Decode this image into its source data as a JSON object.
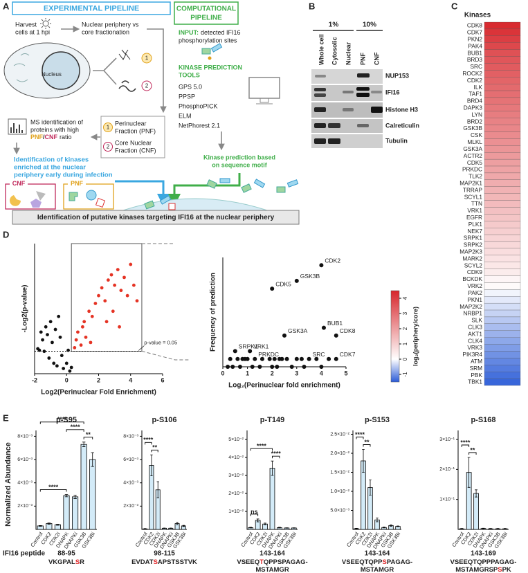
{
  "figure": {
    "panel_labels": [
      "A",
      "B",
      "C",
      "D",
      "E"
    ],
    "A": {
      "experimental_title": "EXPERIMENTAL PIPELINE",
      "computational_title": [
        "COMPUTATIONAL",
        "PIPELINE"
      ],
      "harvest": [
        "Harvest",
        "cells at 1 hpi"
      ],
      "fractionation": [
        "Nuclear periphery vs",
        "core fractionation"
      ],
      "nucleus": "Nucleus",
      "fraction_numbers": [
        "1",
        "2"
      ],
      "pnf": [
        "Perinuclear",
        "Fraction (PNF)"
      ],
      "cnf": [
        "Core Nuclear",
        "Fraction (CNF)"
      ],
      "ms": [
        "MS identification of",
        "proteins with high"
      ],
      "ms_ratio": [
        "PNF",
        "/",
        "CNF",
        "ratio"
      ],
      "kinases_enriched": [
        "Identification of kinases",
        "enriched at  the nuclear",
        "periphery early during infection"
      ],
      "box_cnf": "CNF",
      "box_pnf": "PNF",
      "input": [
        "INPUT:",
        "detected IFI16"
      ],
      "input2": "phosphorylation sites",
      "tools_title": [
        "KINASE PREDICTION",
        "TOOLS"
      ],
      "tools": [
        "GPS 5.0",
        "PPSP",
        "PhosphoPICK",
        "ELM",
        "NetPhorest 2.1"
      ],
      "motif": [
        "Kinase prediction based",
        "on sequence motif"
      ],
      "conclusion": "Identification of putative kinases targeting IFI16 at the nuclear periphery"
    },
    "B": {
      "groups": [
        "1%",
        "10%"
      ],
      "lanes": [
        "Whole cell",
        "Cytosolic",
        "Nuclear",
        "PNF",
        "CNF"
      ],
      "proteins": [
        "NUP153",
        "IFI16",
        "Histone H3",
        "Calreticulin",
        "Tubulin"
      ]
    },
    "E": {
      "ylabel": "Normalized Abundance",
      "peptide_label": "IFI16 peptide"
    }
  },
  "chart_data": [
    {
      "type": "heatmap",
      "title": "Kinases",
      "categories": [
        "CDK8",
        "CDK7",
        "PKN2",
        "PAK4",
        "BUB1",
        "BRD3",
        "SRC",
        "ROCK2",
        "CDK2",
        "ILK",
        "TAF1",
        "BRD4",
        "DAPK3",
        "LYN",
        "BRD2",
        "GSK3B",
        "CSK",
        "MLKL",
        "GSK3A",
        "ACTR2",
        "CDK5",
        "PRKDC",
        "TLK2",
        "MAP2K1",
        "TRRAP",
        "SCYL1",
        "TTN",
        "VRK1",
        "EGFR",
        "PLK1",
        "NEK7",
        "SRPK1",
        "SRPK2",
        "MAP2K3",
        "MARK2",
        "SCYL2",
        "CDK9",
        "BCKDK",
        "VRK2",
        "PAK2",
        "PKN1",
        "MAP2K2",
        "NRBP1",
        "SLK",
        "CLK3",
        "AKT1",
        "CLK4",
        "VRK3",
        "PIK3R4",
        "ATM",
        "SRM",
        "PBK",
        "TBK1"
      ],
      "values": [
        4.4,
        4.2,
        4.0,
        3.8,
        3.6,
        3.5,
        3.4,
        3.3,
        3.2,
        3.1,
        3.0,
        2.9,
        2.8,
        2.7,
        2.6,
        2.5,
        2.4,
        2.3,
        2.2,
        2.1,
        2.0,
        1.9,
        1.8,
        1.7,
        1.6,
        1.5,
        1.4,
        1.3,
        1.2,
        1.1,
        1.0,
        0.9,
        0.8,
        0.7,
        0.6,
        0.5,
        0.4,
        0.2,
        0.1,
        -0.1,
        -0.2,
        -0.3,
        -0.4,
        -0.5,
        -0.6,
        -0.7,
        -0.8,
        -0.9,
        -1.0,
        -1.1,
        -1.2,
        -1.3,
        -1.4
      ],
      "colorbar_title": "log₂(periphery/core)",
      "clim": [
        -1.5,
        4.5
      ],
      "cticks": [
        -1,
        0,
        1,
        2,
        3,
        4
      ],
      "colors": [
        "#2a5bd7",
        "#ffffff",
        "#d7262b"
      ]
    },
    {
      "type": "scatter",
      "xlabel": "Log2(Perinuclear Fold Enrichment)",
      "ylabel": "-Log2(p-value)",
      "xlim": [
        -2,
        6
      ],
      "xticks": [
        -2,
        0,
        2,
        4,
        6
      ],
      "ylim": [
        0,
        25
      ],
      "threshold": {
        "value": 4.32,
        "label": "p-value = 0.05"
      },
      "series": [
        {
          "color": "#111111",
          "x": [
            -1.6,
            -1.5,
            -1.3,
            -1.2,
            -1.0,
            -0.9,
            -0.7,
            -0.5,
            -0.4,
            -1.7,
            -1.4,
            -1.1,
            -0.8,
            -0.6,
            -0.3,
            -0.2,
            0.0,
            0.1,
            0.2,
            0.3,
            -1.8
          ],
          "y": [
            8,
            6.5,
            9,
            7.5,
            10,
            6,
            8.5,
            11,
            7,
            4.5,
            4.3,
            3,
            2,
            1.5,
            3.5,
            1,
            2,
            4.5,
            0.5,
            1.2,
            4.8
          ]
        },
        {
          "color": "#e53324",
          "x": [
            0.5,
            0.6,
            0.7,
            0.9,
            1.0,
            1.2,
            1.1,
            1.4,
            1.6,
            1.8,
            2.0,
            2.2,
            2.4,
            2.6,
            2.8,
            3.0,
            3.2,
            3.4,
            3.6,
            3.8,
            4.0,
            4.2,
            4.4,
            2.9,
            3.3,
            1.5,
            2.5
          ],
          "y": [
            5,
            6.5,
            8,
            5.5,
            9,
            7,
            10,
            12,
            11,
            13.5,
            15,
            16.5,
            14,
            18,
            19,
            17,
            20,
            16,
            18.5,
            15,
            21,
            17,
            14,
            12,
            9,
            6,
            10
          ]
        }
      ]
    },
    {
      "type": "scatter",
      "xlabel": "Log₂(Perinuclear fold enrichment)",
      "ylabel": "Frequency of prediction",
      "xlim": [
        0,
        5
      ],
      "xticks": [
        0,
        1,
        2,
        3,
        4,
        5
      ],
      "ylim": [
        0,
        14
      ],
      "color": "#111111",
      "x": [
        4.0,
        3.0,
        2.0,
        4.1,
        4.6,
        2.5,
        0.5,
        1.1,
        1.3,
        3.5,
        4.6,
        0.3,
        0.6,
        0.8,
        0.9,
        1.0,
        1.6,
        1.9,
        2.1,
        2.3,
        2.4,
        2.6,
        3.0,
        3.2,
        3.8,
        4.3,
        0.2,
        0.4,
        0.7,
        1.2,
        1.5,
        2.0,
        2.2,
        2.8,
        3.3,
        4.0
      ],
      "y": [
        13,
        11,
        10,
        5,
        4,
        4,
        2,
        2,
        1,
        1,
        1,
        1,
        1,
        1,
        1,
        1,
        1,
        1,
        1,
        1,
        1,
        1,
        1,
        1,
        1,
        1,
        0,
        0,
        0,
        0,
        0,
        0,
        0,
        0,
        0,
        0
      ],
      "labels": [
        "CDK2",
        "GSK3B",
        "CDK5",
        "BUB1",
        "CDK8",
        "GSK3A",
        "SRPK1",
        "VRK1",
        "PRKDC",
        "SRC",
        "CDK7",
        null,
        null,
        null,
        null,
        null,
        null,
        null,
        null,
        null,
        null,
        null,
        null,
        null,
        null,
        null,
        null,
        null,
        null,
        null,
        null,
        null,
        null,
        null,
        null,
        null
      ]
    },
    {
      "type": "bar",
      "title": "p-S95",
      "color": "#d3ebf8",
      "categories": [
        "Control",
        "CDK2",
        "CDK2i",
        "DNAPK",
        "DNAPKi",
        "GSK3B",
        "GSK3Bi"
      ],
      "values": [
        0.0003,
        0.0005,
        0.0004,
        0.0029,
        0.0028,
        0.0073,
        0.006
      ],
      "errors": [
        3e-05,
        5e-05,
        4e-05,
        0.0001,
        0.00015,
        0.0002,
        0.0006
      ],
      "ylim": [
        0,
        0.0085
      ],
      "yticks": [
        {
          "value": 0.002,
          "label": "2×10⁻³"
        },
        {
          "value": 0.004,
          "label": "4×10⁻³"
        },
        {
          "value": 0.006,
          "label": "6×10⁻³"
        },
        {
          "value": 0.008,
          "label": "8×10⁻³"
        }
      ],
      "annotations": [
        {
          "label": "****",
          "between": [
            "Control",
            "DNAPK"
          ]
        },
        {
          "label": "**",
          "between": [
            "GSK3B",
            "GSK3Bi"
          ]
        },
        {
          "label": "****",
          "between": [
            "DNAPK",
            "GSK3B"
          ]
        },
        {
          "label": "****",
          "between": [
            "Control",
            "GSK3B"
          ]
        }
      ],
      "range": "88-95",
      "sequence": [
        [
          "VKGPAL",
          "S",
          "R"
        ]
      ]
    },
    {
      "type": "bar",
      "title": "p-S106",
      "color": "#d3ebf8",
      "categories": [
        "Control",
        "CDK2",
        "CDK2i",
        "DNAPK",
        "DNAPKi",
        "GSK3B",
        "GSK3Bi"
      ],
      "values": [
        5e-05,
        0.0055,
        0.0034,
        0.0001,
        0.0001,
        0.0005,
        0.0003
      ],
      "errors": [
        2e-05,
        0.0009,
        0.0007,
        2e-05,
        2e-05,
        0.0001,
        5e-05
      ],
      "ylim": [
        0,
        0.0085
      ],
      "yticks": [
        {
          "value": 0.002,
          "label": "2×10⁻³"
        },
        {
          "value": 0.004,
          "label": "4×10⁻³"
        },
        {
          "value": 0.006,
          "label": "6×10⁻³"
        },
        {
          "value": 0.008,
          "label": "8×10⁻³"
        }
      ],
      "annotations": [
        {
          "label": "**",
          "between": [
            "CDK2",
            "CDK2i"
          ]
        },
        {
          "label": "****",
          "between": [
            "Control",
            "CDK2"
          ]
        }
      ],
      "range": "98-115",
      "sequence": [
        [
          "EVDAT",
          "S",
          "APSTSSTVK"
        ]
      ]
    },
    {
      "type": "bar",
      "title": "p-T149",
      "color": "#d3ebf8",
      "categories": [
        "Control",
        "CDK2",
        "CDK2i",
        "DNAPK",
        "DNAPKi",
        "GSK3B",
        "GSK3Bi"
      ],
      "values": [
        0.001,
        0.005,
        0.003,
        0.034,
        0.001,
        0.0008,
        0.0008
      ],
      "errors": [
        0.0002,
        0.0008,
        0.0005,
        0.004,
        0.0002,
        0.0001,
        0.0001
      ],
      "ylim": [
        0,
        0.055
      ],
      "yticks": [
        {
          "value": 0.01,
          "label": "1×10⁻²"
        },
        {
          "value": 0.02,
          "label": "2×10⁻²"
        },
        {
          "value": 0.03,
          "label": "3×10⁻²"
        },
        {
          "value": 0.04,
          "label": "4×10⁻²"
        },
        {
          "value": 0.05,
          "label": "5×10⁻²"
        }
      ],
      "annotations": [
        {
          "label": "ns",
          "between": [
            "Control",
            "CDK2"
          ]
        },
        {
          "label": "****",
          "between": [
            "DNAPK",
            "DNAPKi"
          ]
        },
        {
          "label": "****",
          "between": [
            "Control",
            "DNAPK"
          ]
        }
      ],
      "range": "143-164",
      "sequence": [
        [
          "VSEEQ",
          "T",
          "QPPSPAGAG-"
        ],
        [
          "MSTAMGR"
        ]
      ]
    },
    {
      "type": "bar",
      "title": "p-S153",
      "color": "#d3ebf8",
      "categories": [
        "Control",
        "CDK2",
        "CDK2i",
        "DNAPK",
        "DNAPKi",
        "GSK3B",
        "GSK3Bi"
      ],
      "values": [
        0.0002,
        0.018,
        0.011,
        0.0025,
        0.0005,
        0.001,
        0.0008
      ],
      "errors": [
        0.0001,
        0.003,
        0.002,
        0.0005,
        0.0001,
        0.0002,
        0.0001
      ],
      "ylim": [
        0,
        0.026
      ],
      "yticks": [
        {
          "value": 0.005,
          "label": "5.0×10⁻³"
        },
        {
          "value": 0.01,
          "label": "1.0×10⁻²"
        },
        {
          "value": 0.015,
          "label": "1.5×10⁻²"
        },
        {
          "value": 0.02,
          "label": "2.0×10⁻²"
        },
        {
          "value": 0.025,
          "label": "2.5×10⁻²"
        }
      ],
      "annotations": [
        {
          "label": "**",
          "between": [
            "CDK2",
            "CDK2i"
          ]
        },
        {
          "label": "****",
          "between": [
            "Control",
            "CDK2"
          ]
        }
      ],
      "range": "143-164",
      "sequence": [
        [
          "VSEEQTQPP",
          "S",
          "PAGAG-"
        ],
        [
          "MSTAMGR"
        ]
      ]
    },
    {
      "type": "bar",
      "title": "p-S168",
      "color": "#d3ebf8",
      "categories": [
        "Control",
        "CDK2",
        "CDK2i",
        "DNAPK",
        "DNAPKi",
        "GSK3B",
        "GSK3Bi"
      ],
      "values": [
        0.002,
        0.19,
        0.12,
        0.003,
        0.002,
        0.002,
        0.002
      ],
      "errors": [
        0.001,
        0.05,
        0.012,
        0.001,
        0.001,
        0.001,
        0.001
      ],
      "ylim": [
        0,
        0.33
      ],
      "yticks": [
        {
          "value": 0.1,
          "label": "1×10⁻¹"
        },
        {
          "value": 0.2,
          "label": "2×10⁻¹"
        },
        {
          "value": 0.3,
          "label": "3×10⁻¹"
        }
      ],
      "annotations": [
        {
          "label": "**",
          "between": [
            "CDK2",
            "CDK2i"
          ]
        },
        {
          "label": "****",
          "between": [
            "Control",
            "CDK2"
          ]
        }
      ],
      "range": "143-169",
      "sequence": [
        [
          "VSEEQTQPPPAGAG-"
        ],
        [
          "MSTAMGRSP",
          "S",
          "PK"
        ]
      ]
    }
  ]
}
